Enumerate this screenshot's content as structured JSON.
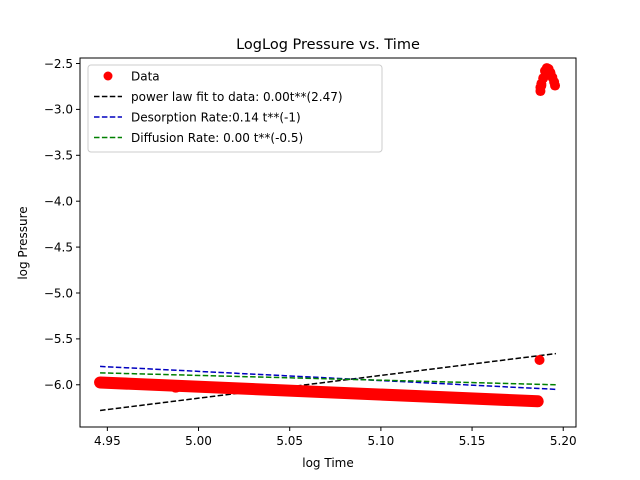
{
  "chart_data": {
    "type": "scatter",
    "title": "LogLog Pressure vs. Time",
    "xlabel": "log Time",
    "ylabel": "log Pressure",
    "xlim": [
      4.935,
      5.207
    ],
    "ylim": [
      -6.46,
      -2.44
    ],
    "xticks": [
      4.95,
      5.0,
      5.05,
      5.1,
      5.15,
      5.2
    ],
    "xtick_labels": [
      "4.95",
      "5.00",
      "5.05",
      "5.10",
      "5.15",
      "5.20"
    ],
    "yticks": [
      -2.5,
      -3.0,
      -3.5,
      -4.0,
      -4.5,
      -5.0,
      -5.5,
      -6.0
    ],
    "ytick_labels": [
      "−2.5",
      "−3.0",
      "−3.5",
      "−4.0",
      "−4.5",
      "−5.0",
      "−5.5",
      "−6.0"
    ],
    "grid": false,
    "legend_position": "top-left",
    "series": [
      {
        "name": "Data",
        "kind": "scatter",
        "color": "#ff0000",
        "segments": [
          {
            "x": [
              4.946,
              5.186
            ],
            "y": [
              -5.975,
              -6.18
            ]
          },
          {
            "x": [
              4.9875
            ],
            "y": [
              -6.02
            ]
          }
        ],
        "points": [
          {
            "x": 5.187,
            "y": -5.73
          },
          {
            "x": 5.1875,
            "y": -2.8
          },
          {
            "x": 5.188,
            "y": -2.74
          },
          {
            "x": 5.189,
            "y": -2.66
          },
          {
            "x": 5.19,
            "y": -2.58
          },
          {
            "x": 5.191,
            "y": -2.55
          },
          {
            "x": 5.192,
            "y": -2.56
          },
          {
            "x": 5.193,
            "y": -2.6
          },
          {
            "x": 5.194,
            "y": -2.65
          },
          {
            "x": 5.195,
            "y": -2.7
          },
          {
            "x": 5.1955,
            "y": -2.74
          },
          {
            "x": 5.1875,
            "y": -2.76
          },
          {
            "x": 5.188,
            "y": -2.72
          }
        ]
      },
      {
        "name": "power law fit to data: 0.00t**(2.47)",
        "kind": "dashed-line",
        "color": "#000000",
        "x": [
          4.946,
          5.196
        ],
        "y": [
          -6.28,
          -5.66
        ]
      },
      {
        "name": "Desorption Rate:0.14  t**(-1)",
        "kind": "dashed-line",
        "color": "#0000bf",
        "x": [
          4.946,
          5.196
        ],
        "y": [
          -5.8,
          -6.05
        ]
      },
      {
        "name": "Diffusion Rate: 0.00 t**(-0.5)",
        "kind": "dashed-line",
        "color": "#008000",
        "x": [
          4.946,
          5.196
        ],
        "y": [
          -5.87,
          -6.0
        ]
      }
    ]
  }
}
